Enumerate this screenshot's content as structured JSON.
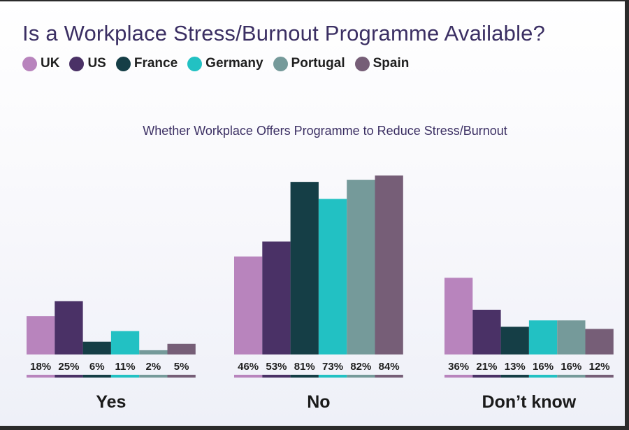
{
  "title": "Is a Workplace Stress/Burnout Programme Available?",
  "legend": [
    {
      "label": "UK",
      "color": "#b884bd"
    },
    {
      "label": "US",
      "color": "#4a3166"
    },
    {
      "label": "France",
      "color": "#153e46"
    },
    {
      "label": "Germany",
      "color": "#22c1c3"
    },
    {
      "label": "Portugal",
      "color": "#759a9a"
    },
    {
      "label": "Spain",
      "color": "#765e77"
    }
  ],
  "chart_data": {
    "type": "bar",
    "title": "Whether Workplace Offers Programme to Reduce Stress/Burnout",
    "categories": [
      "Yes",
      "No",
      "Don’t know"
    ],
    "series": [
      {
        "name": "UK",
        "values": [
          18,
          46,
          36
        ]
      },
      {
        "name": "US",
        "values": [
          25,
          53,
          21
        ]
      },
      {
        "name": "France",
        "values": [
          6,
          81,
          13
        ]
      },
      {
        "name": "Germany",
        "values": [
          11,
          73,
          16
        ]
      },
      {
        "name": "Portugal",
        "values": [
          2,
          82,
          16
        ]
      },
      {
        "name": "Spain",
        "values": [
          5,
          84,
          12
        ]
      }
    ],
    "value_suffix": "%",
    "ylim": [
      0,
      84
    ],
    "grid": false,
    "legend_position": "top-left"
  }
}
